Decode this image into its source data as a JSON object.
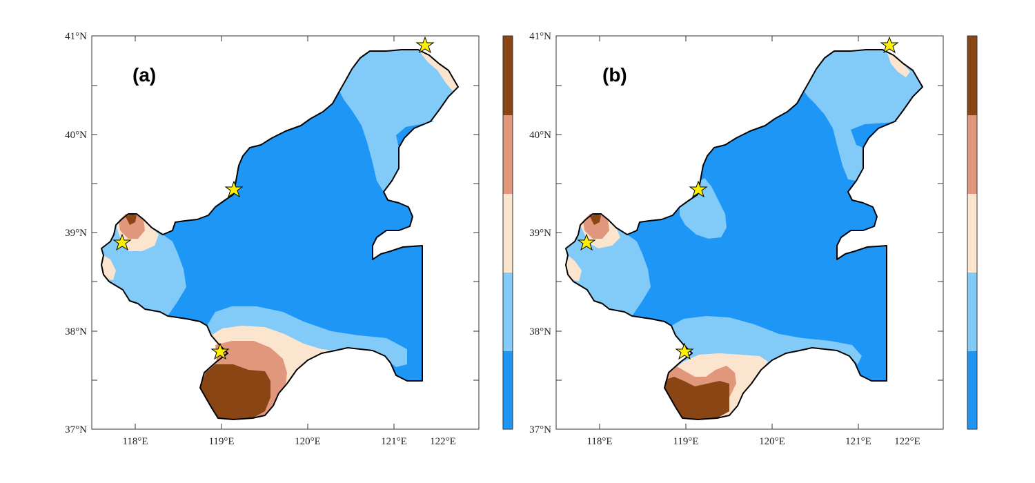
{
  "colors": {
    "c1": "#1E96F5",
    "c2": "#82CAF8",
    "c3": "#FCE5CF",
    "c4": "#E1977C",
    "c5": "#8A4515",
    "star": "#FFF000"
  },
  "axes": {
    "x_ticks": [
      "118°E",
      "119°E",
      "120°E",
      "121°E",
      "122°E"
    ],
    "y_ticks": [
      "41°N",
      "40°N",
      "39°N",
      "38°N",
      "37°N"
    ]
  },
  "colorbar": {
    "levels": 5,
    "tick_labels": []
  },
  "panels": [
    {
      "label": "(a)",
      "variant": "a"
    },
    {
      "label": "(b)",
      "variant": "b"
    }
  ],
  "stations": [
    "star-north",
    "star-qinhuangdao",
    "star-west",
    "star-south"
  ]
}
